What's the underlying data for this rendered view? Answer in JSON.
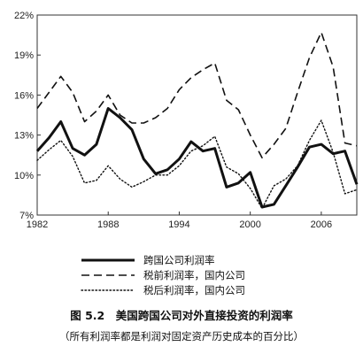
{
  "chart_data": {
    "type": "line",
    "y_tick_labels": [
      "7%",
      "10%",
      "13%",
      "16%",
      "19%",
      "22%"
    ],
    "ylim": [
      7,
      22
    ],
    "x_tick_labels": [
      "1982",
      "1988",
      "1994",
      "2000",
      "2006"
    ],
    "xlim": [
      1982,
      2009
    ],
    "grid": false,
    "legend_position": "bottom",
    "series": [
      {
        "name": "跨国公司利润率",
        "style": "solid",
        "x": [
          1982,
          1983,
          1984,
          1985,
          1986,
          1987,
          1988,
          1989,
          1990,
          1991,
          1992,
          1993,
          1994,
          1995,
          1996,
          1997,
          1998,
          1999,
          2000,
          2001,
          2002,
          2003,
          2004,
          2005,
          2006,
          2007,
          2008,
          2009
        ],
        "values": [
          11.8,
          12.8,
          14.0,
          12.0,
          11.5,
          12.3,
          15.0,
          14.3,
          13.4,
          11.2,
          10.1,
          10.4,
          11.2,
          12.5,
          11.8,
          12.0,
          9.1,
          9.4,
          10.2,
          7.6,
          7.8,
          9.2,
          10.6,
          12.1,
          12.3,
          11.6,
          11.8,
          9.3
        ]
      },
      {
        "name": "税前利润率，国内公司",
        "style": "dashed",
        "x": [
          1982,
          1983,
          1984,
          1985,
          1986,
          1987,
          1988,
          1989,
          1990,
          1991,
          1992,
          1993,
          1994,
          1995,
          1996,
          1997,
          1998,
          1999,
          2000,
          2001,
          2002,
          2003,
          2004,
          2005,
          2006,
          2007,
          2008,
          2009
        ],
        "values": [
          15.0,
          16.2,
          17.4,
          16.2,
          14.0,
          14.8,
          16.0,
          14.5,
          13.9,
          13.9,
          14.3,
          15.0,
          16.4,
          17.3,
          17.9,
          18.4,
          15.6,
          14.9,
          13.0,
          11.3,
          12.3,
          13.5,
          16.2,
          18.8,
          20.7,
          18.1,
          12.4,
          12.2
        ]
      },
      {
        "name": "税后利润率，国内公司",
        "style": "dotted",
        "x": [
          1982,
          1983,
          1984,
          1985,
          1986,
          1987,
          1988,
          1989,
          1990,
          1991,
          1992,
          1993,
          1994,
          1995,
          1996,
          1997,
          1998,
          1999,
          2000,
          2001,
          2002,
          2003,
          2004,
          2005,
          2006,
          2007,
          2008,
          2009
        ],
        "values": [
          11.1,
          11.9,
          12.6,
          11.4,
          9.4,
          9.6,
          10.7,
          9.7,
          9.1,
          9.5,
          10.0,
          10.0,
          10.7,
          11.8,
          12.2,
          12.9,
          10.6,
          10.1,
          9.0,
          7.5,
          9.2,
          9.7,
          10.7,
          12.6,
          14.1,
          11.7,
          8.6,
          8.9
        ]
      }
    ]
  },
  "caption": {
    "title": "图 5.2　美国跨国公司对外直接投资的利润率",
    "note": "（所有利润率都是利润对固定资产历史成本的百分比）"
  }
}
